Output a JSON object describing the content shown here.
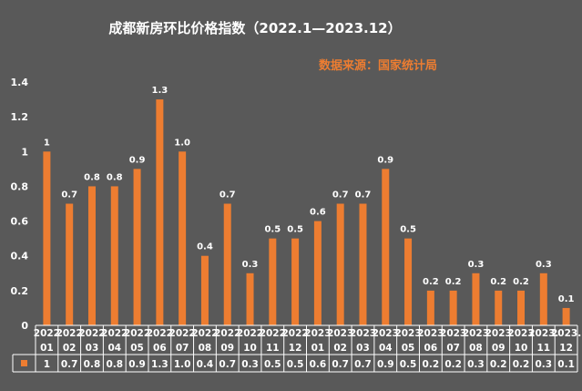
{
  "title": "成都新房环比价格指数（2022.1—2023.12）",
  "source": "数据来源：国家统计局",
  "colors": {
    "background": "#595959",
    "bar": "#ED7D31",
    "text": "#FFFFFF",
    "grid": "#7F7F7F"
  },
  "chart_data": {
    "type": "bar",
    "title": "成都新房环比价格指数（2022.1—2023.12）",
    "xlabel": "",
    "ylabel": "",
    "ylim": [
      0,
      1.4
    ],
    "yticks": [
      "0",
      "0.2",
      "0.4",
      "0.6",
      "0.8",
      "1",
      "1.2",
      "1.4"
    ],
    "grid": false,
    "legend": "data-table",
    "categories": [
      {
        "year": "2022",
        "month": "01"
      },
      {
        "year": "2022",
        "month": "02"
      },
      {
        "year": "2022",
        "month": "03"
      },
      {
        "year": "2022",
        "month": "04"
      },
      {
        "year": "2022",
        "month": "05"
      },
      {
        "year": "2022",
        "month": "06"
      },
      {
        "year": "2022",
        "month": "07"
      },
      {
        "year": "2022",
        "month": "08"
      },
      {
        "year": "2022",
        "month": "09"
      },
      {
        "year": "2022",
        "month": "10"
      },
      {
        "year": "2022",
        "month": "11"
      },
      {
        "year": "2022",
        "month": "12"
      },
      {
        "year": "2023",
        "month": "01"
      },
      {
        "year": "2023",
        "month": "02"
      },
      {
        "year": "2023",
        "month": "03"
      },
      {
        "year": "2023",
        "month": "04"
      },
      {
        "year": "2023",
        "month": "05"
      },
      {
        "year": "2023",
        "month": "06"
      },
      {
        "year": "2023",
        "month": "07"
      },
      {
        "year": "2023",
        "month": "08"
      },
      {
        "year": "2023",
        "month": "09"
      },
      {
        "year": "2023",
        "month": "10"
      },
      {
        "year": "2023.",
        "month": "11"
      },
      {
        "year": "2023.",
        "month": "12"
      }
    ],
    "values": [
      1,
      0.7,
      0.8,
      0.8,
      0.9,
      1.3,
      1.0,
      0.4,
      0.7,
      0.3,
      0.5,
      0.5,
      0.6,
      0.7,
      0.7,
      0.9,
      0.5,
      0.2,
      0.2,
      0.3,
      0.2,
      0.2,
      0.3,
      0.1
    ],
    "labels": [
      "1",
      "0.7",
      "0.8",
      "0.8",
      "0.9",
      "1.3",
      "1.0",
      "0.4",
      "0.7",
      "0.3",
      "0.5",
      "0.5",
      "0.6",
      "0.7",
      "0.7",
      "0.9",
      "0.5",
      "0.2",
      "0.2",
      "0.3",
      "0.2",
      "0.2",
      "0.3",
      "0.1"
    ]
  }
}
